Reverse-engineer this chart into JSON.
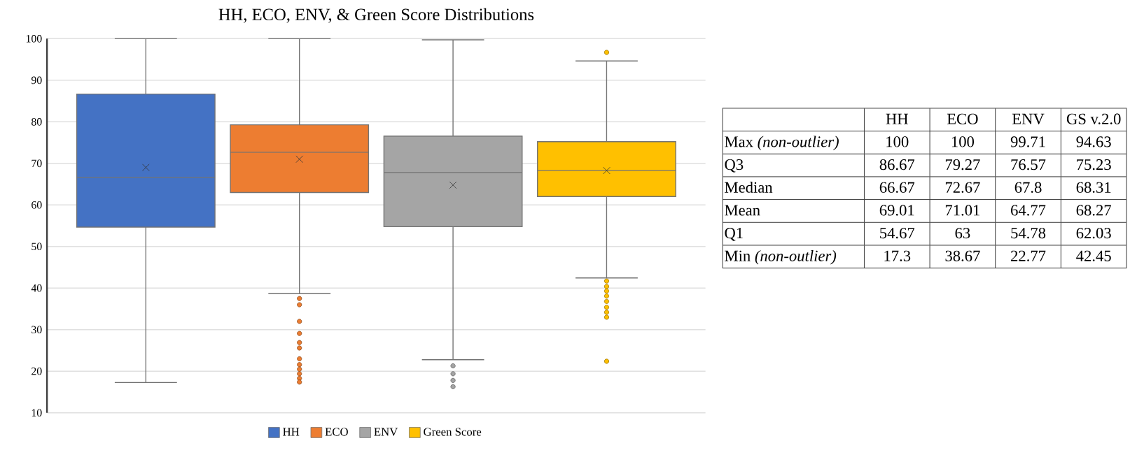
{
  "chart_data": {
    "type": "box",
    "title": "HH, ECO, ENV, & Green Score Distributions",
    "categories": [
      null
    ],
    "series": [
      {
        "name": "HH",
        "color": "#4472c4",
        "boxes": [
          {
            "low": 17.3,
            "q1": 54.67,
            "median": 66.67,
            "q3": 86.67,
            "high": 100,
            "mean": 69.01
          }
        ]
      },
      {
        "name": "ECO",
        "color": "#ed7d31",
        "boxes": [
          {
            "low": 38.67,
            "q1": 63,
            "median": 72.67,
            "q3": 79.27,
            "high": 100,
            "mean": 71.01,
            "outliers": [
              37.5,
              36.0,
              32.0,
              29.1,
              26.9,
              25.6,
              23.0,
              21.6,
              20.5,
              19.4,
              18.3,
              17.4
            ]
          }
        ]
      },
      {
        "name": "ENV",
        "color": "#a5a5a5",
        "boxes": [
          {
            "low": 22.77,
            "q1": 54.78,
            "median": 67.8,
            "q3": 76.57,
            "high": 99.71,
            "mean": 64.77,
            "outliers": [
              21.3,
              19.4,
              17.8,
              16.3
            ]
          }
        ]
      },
      {
        "name": "Green Score",
        "color": "#ffc000",
        "boxes": [
          {
            "low": 42.45,
            "q1": 62.03,
            "median": 68.31,
            "q3": 75.23,
            "high": 94.63,
            "mean": 68.27,
            "outliers": [
              96.7,
              41.7,
              40.4,
              39.3,
              38.1,
              36.8,
              35.4,
              34.2,
              33.0,
              22.4
            ]
          }
        ]
      }
    ],
    "ylim": [
      10,
      100
    ],
    "yticks": [
      10,
      20,
      30,
      40,
      50,
      60,
      70,
      80,
      90,
      100
    ],
    "grid": "y",
    "legend": "bottom",
    "annotations": [
      "HH",
      "ECO",
      "ENV",
      "GS v.2.0",
      "Max *(non-outlier)*",
      "Q3",
      "Median",
      "Mean",
      "Q1",
      "Min *(non-outlier)*",
      "100",
      "100",
      "99.71",
      "94.63",
      "86.67",
      "79.27",
      "76.57",
      "75.23",
      "66.67",
      "72.67",
      "67.8",
      "68.31",
      "69.01",
      "71.01",
      "64.77",
      "68.27",
      "54.67",
      "63",
      "54.78",
      "62.03",
      "17.3",
      "38.67",
      "22.77",
      "42.45"
    ]
  }
}
